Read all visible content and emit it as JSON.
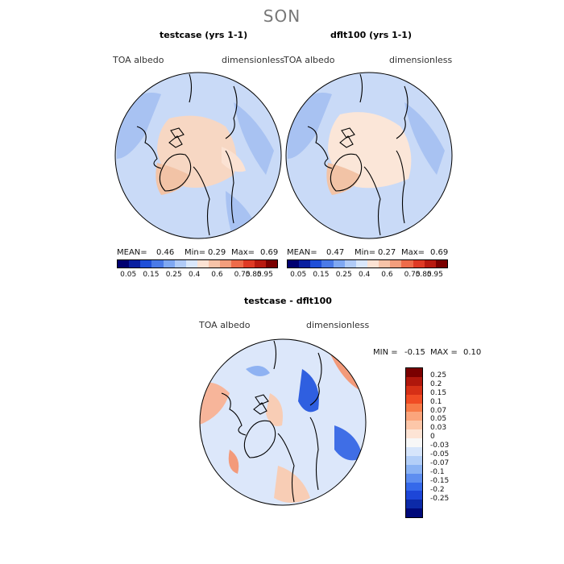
{
  "figure_title": "SON",
  "panels": {
    "left": {
      "title": "testcase (yrs 1-1)",
      "var_label": "TOA albedo",
      "units_label": "dimensionless",
      "mean_label": "MEAN=",
      "mean": "0.46",
      "min_label": "Min=",
      "min": "0.29",
      "max_label": "Max=",
      "max": "0.69"
    },
    "right": {
      "title": "dflt100 (yrs 1-1)",
      "var_label": "TOA albedo",
      "units_label": "dimensionless",
      "mean_label": "MEAN=",
      "mean": "0.47",
      "min_label": "Min=",
      "min": "0.27",
      "max_label": "Max=",
      "max": "0.69"
    },
    "diff": {
      "title": "testcase - dflt100",
      "var_label": "TOA albedo",
      "units_label": "dimensionless",
      "min_label": "MIN =",
      "min": "-0.15",
      "max_label": "MAX =",
      "max": "0.10"
    }
  },
  "colorbar_top": {
    "colors": [
      "#000070",
      "#0a1fa0",
      "#1f4fd8",
      "#4a7ae8",
      "#7fa8f2",
      "#b0cbf7",
      "#d9e7fb",
      "#fbe2d3",
      "#f7c3a8",
      "#f39e7d",
      "#ee6b4a",
      "#df3a25",
      "#b81a10",
      "#7a0000"
    ],
    "labels": [
      "0.05",
      "0.15",
      "0.25",
      "0.4",
      "0.6",
      "0.75",
      "0.85",
      "0.95"
    ]
  },
  "colorbar_diff": {
    "colors": [
      "#7a0000",
      "#b0170c",
      "#d63016",
      "#f04c24",
      "#f77b48",
      "#fba57c",
      "#fdc7a9",
      "#fde4d5",
      "#f7f7f7",
      "#d6e5fb",
      "#b3cff8",
      "#8bb3f4",
      "#5e8ef0",
      "#3569ea",
      "#1d46d8",
      "#0c2aa8",
      "#000a7a"
    ],
    "labels": [
      "0.25",
      "0.2",
      "0.15",
      "0.1",
      "0.07",
      "0.05",
      "0.03",
      "0",
      "-0.03",
      "-0.05",
      "-0.07",
      "-0.1",
      "-0.15",
      "-0.2",
      "-0.25"
    ]
  },
  "colors": {
    "ocean_field": "#c9daf7",
    "land_warm": "#f7d7c3",
    "diff_neutral": "#eef2fb"
  }
}
